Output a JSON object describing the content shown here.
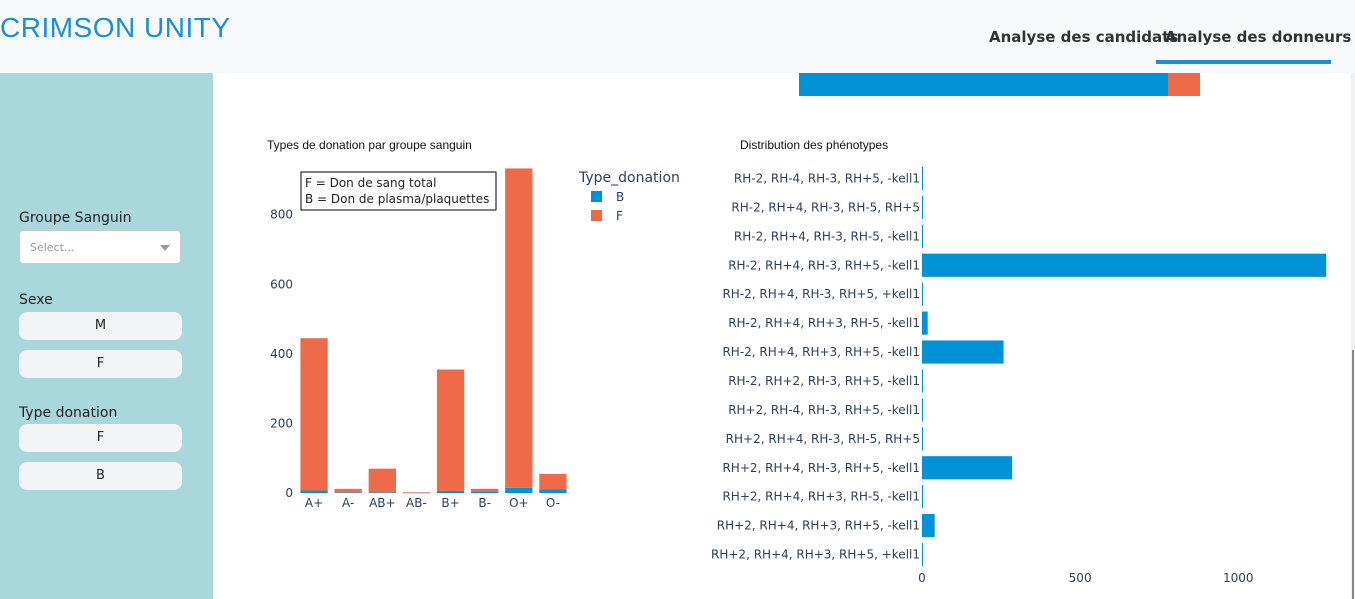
{
  "header": {
    "brand": "CRIMSON UNITY",
    "tabs": [
      {
        "label": "Analyse des candidats",
        "active": false
      },
      {
        "label": "Analyse des donneurs",
        "active": true
      }
    ],
    "accent_color": "#1a8fd6"
  },
  "sidebar": {
    "groupe_label": "Groupe Sanguin",
    "groupe_placeholder": "Select...",
    "sexe_label": "Sexe",
    "sexe_options": [
      "M",
      "F"
    ],
    "type_label": "Type donation",
    "type_options": [
      "F",
      "B"
    ],
    "background": "#a8d8dc"
  },
  "chart_data": [
    {
      "type": "bar",
      "stacked": true,
      "title": "Types de donation par groupe sanguin",
      "categories": [
        "A+",
        "A-",
        "AB+",
        "AB-",
        "B+",
        "B-",
        "O+",
        "O-"
      ],
      "series": [
        {
          "name": "B",
          "color": "#0092d6",
          "values": [
            7,
            2,
            2,
            1,
            6,
            4,
            15,
            10
          ]
        },
        {
          "name": "F",
          "color": "#ee6a48",
          "values": [
            438,
            10,
            68,
            1,
            349,
            8,
            918,
            45
          ]
        }
      ],
      "legend_title": "Type_donation",
      "legend_position": "top-right",
      "annotation": [
        "F = Don de sang total",
        "B = Don de plasma/plaquettes"
      ],
      "ylim": [
        0,
        940
      ],
      "yticks": [
        0,
        200,
        400,
        600,
        800
      ],
      "xlabel": "",
      "ylabel": ""
    },
    {
      "type": "bar",
      "orientation": "horizontal",
      "title": "Distribution des phénotypes",
      "categories": [
        "RH-2, RH-4, RH-3, RH+5, -kell1",
        "RH-2, RH+4, RH-3, RH-5, RH+5",
        "RH-2, RH+4, RH-3, RH-5, -kell1",
        "RH-2, RH+4, RH-3, RH+5, -kell1",
        "RH-2, RH+4, RH-3, RH+5, +kell1",
        "RH-2, RH+4, RH+3, RH-5, -kell1",
        "RH-2, RH+4, RH+3, RH+5, -kell1",
        "RH-2, RH+2, RH-3, RH+5, -kell1",
        "RH+2, RH-4, RH-3, RH+5, -kell1",
        "RH+2, RH+4, RH-3, RH-5, RH+5",
        "RH+2, RH+4, RH-3, RH+5, -kell1",
        "RH+2, RH+4, RH+3, RH-5, -kell1",
        "RH+2, RH+4, RH+3, RH+5, -kell1",
        "RH+2, RH+4, RH+3, RH+5, +kell1"
      ],
      "values": [
        2,
        1,
        2,
        1278,
        1,
        18,
        258,
        1,
        3,
        1,
        285,
        1,
        40,
        2
      ],
      "color": "#0092d6",
      "xlim": [
        0,
        1290
      ],
      "xticks": [
        0,
        500,
        1000
      ],
      "xlabel": "",
      "ylabel": ""
    },
    {
      "type": "bar",
      "orientation": "horizontal",
      "stacked": true,
      "partially_visible": true,
      "series": [
        {
          "name": "B",
          "color": "#0092d6",
          "values": [
            369
          ]
        },
        {
          "name": "F",
          "color": "#ee6a48",
          "values": [
            32
          ]
        }
      ]
    }
  ]
}
